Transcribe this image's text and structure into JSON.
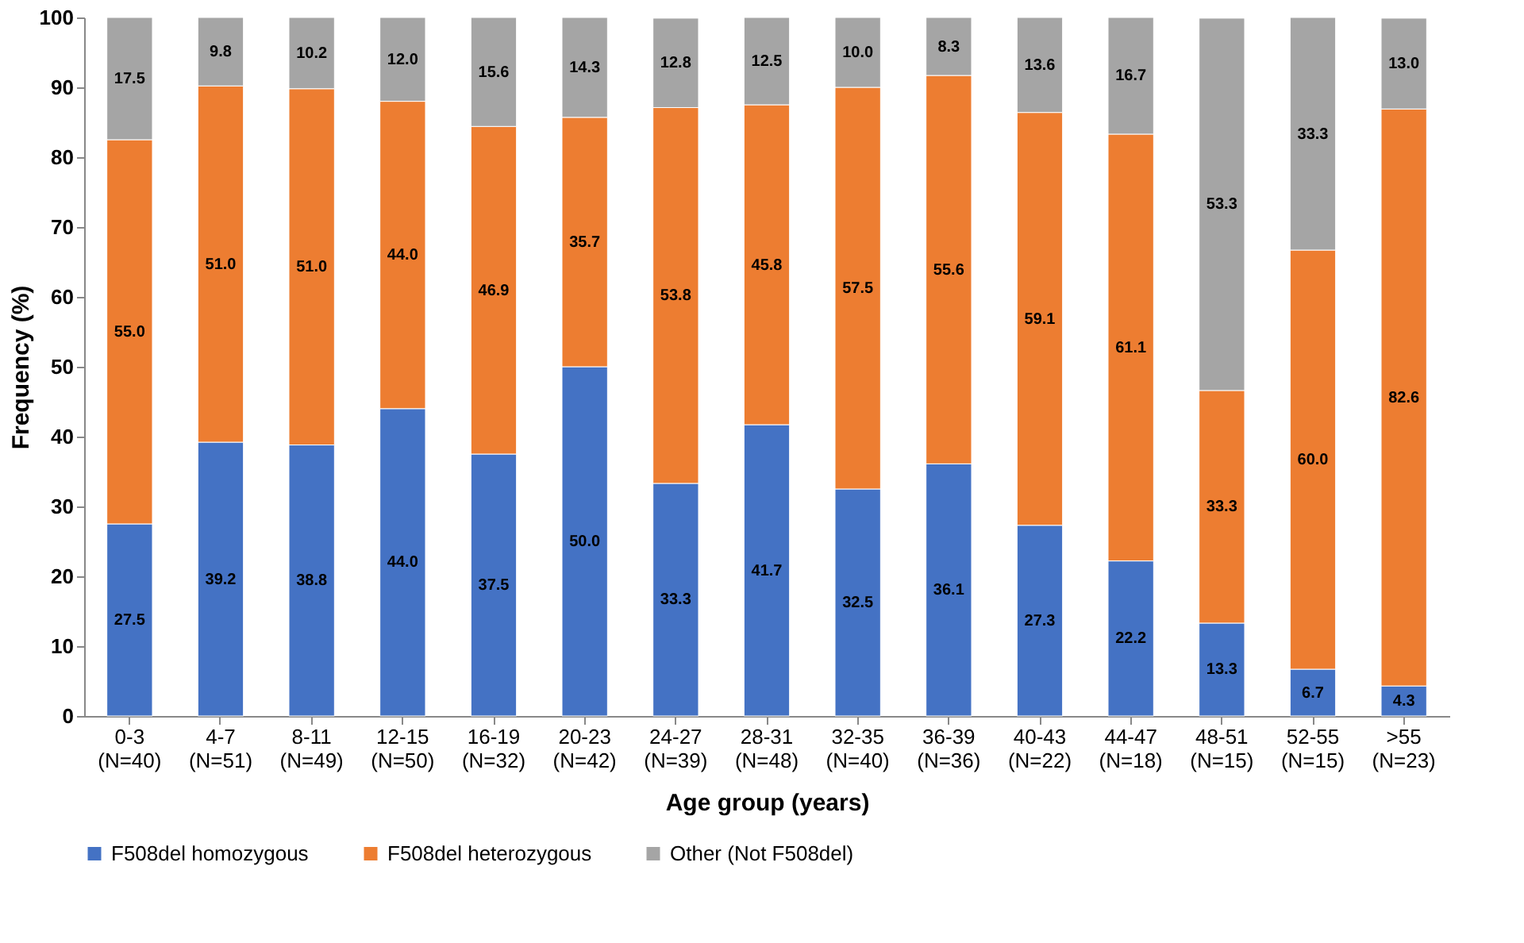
{
  "chart_data": {
    "type": "bar",
    "stacked": true,
    "xlabel": "Age group (years)",
    "ylabel": "Frequency (%)",
    "categories": [
      "0-3\n(N=40)",
      "4-7\n(N=51)",
      "8-11\n(N=49)",
      "12-15\n(N=50)",
      "16-19\n(N=32)",
      "20-23\n(N=42)",
      "24-27\n(N=39)",
      "28-31\n(N=48)",
      "32-35\n(N=40)",
      "36-39\n(N=36)",
      "40-43\n(N=22)",
      "44-47\n(N=18)",
      "48-51\n(N=15)",
      "52-55\n(N=15)",
      ">55\n(N=23)"
    ],
    "series": [
      {
        "name": "F508del homozygous",
        "color": "#4472c4",
        "values": [
          27.5,
          39.2,
          38.8,
          44.0,
          37.5,
          50.0,
          33.3,
          41.7,
          32.5,
          36.1,
          27.3,
          22.2,
          13.3,
          6.7,
          4.3
        ],
        "value_labels": [
          "27.5",
          "39.2",
          "38.8",
          "44.0",
          "37.5",
          "50.0",
          "33.3",
          "41.7",
          "32.5",
          "36.1",
          "27.3",
          "22.2",
          "13.3",
          "6.7",
          "4.3"
        ]
      },
      {
        "name": "F508del heterozygous",
        "color": "#ed7d31",
        "values": [
          55.0,
          51.0,
          51.0,
          44.0,
          46.9,
          35.7,
          53.8,
          45.8,
          57.5,
          55.6,
          59.1,
          61.1,
          33.3,
          60.0,
          82.6
        ],
        "value_labels": [
          "55.0",
          "51.0",
          "51.0",
          "44.0",
          "46.9",
          "35.7",
          "53.8",
          "45.8",
          "57.5",
          "55.6",
          "59.1",
          "61.1",
          "33.3",
          "60.0",
          "82.6"
        ]
      },
      {
        "name": "Other (Not F508del)",
        "color": "#a5a5a5",
        "values": [
          17.5,
          9.8,
          10.2,
          12.0,
          15.6,
          14.3,
          12.8,
          12.5,
          10.0,
          8.3,
          13.6,
          16.7,
          53.3,
          33.3,
          13.0
        ],
        "value_labels": [
          "17.5",
          "9.8",
          "10.2",
          "12.0",
          "15.6",
          "14.3",
          "12.8",
          "12.5",
          "10.0",
          "8.3",
          "13.6",
          "16.7",
          "53.3",
          "33.3",
          "13.0"
        ]
      }
    ],
    "ylim": [
      0,
      100
    ],
    "yticks": [
      0,
      10,
      20,
      30,
      40,
      50,
      60,
      70,
      80,
      90,
      100
    ],
    "grid": false,
    "legend": "bottom"
  }
}
